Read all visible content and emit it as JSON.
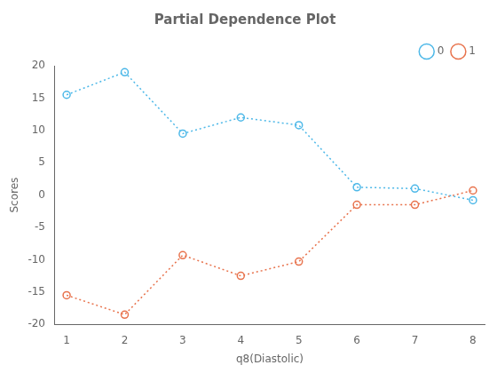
{
  "chart_data": {
    "type": "line",
    "title": "Partial Dependence Plot",
    "xlabel": "q8(Diastolic)",
    "ylabel": "Scores",
    "x": [
      1,
      2,
      3,
      4,
      5,
      6,
      7,
      8
    ],
    "series": [
      {
        "name": "0",
        "color": "#4db8e8",
        "marker": "o",
        "line_style": "dotted",
        "values": [
          15.5,
          19.0,
          9.5,
          12.0,
          10.8,
          1.2,
          1.0,
          -0.8
        ]
      },
      {
        "name": "1",
        "color": "#e8734d",
        "marker": "o",
        "line_style": "dotted",
        "values": [
          -15.5,
          -18.5,
          -9.3,
          -12.5,
          -10.3,
          -1.5,
          -1.5,
          0.7
        ]
      }
    ],
    "xlim": [
      0.8,
      8.2
    ],
    "xticks": [
      1,
      2,
      3,
      4,
      5,
      6,
      7,
      8
    ],
    "ylim": [
      -20,
      20
    ],
    "yticks": [
      -20,
      -15,
      -10,
      -5,
      0,
      5,
      10,
      15,
      20
    ],
    "grid": false,
    "legend": "upper right"
  }
}
